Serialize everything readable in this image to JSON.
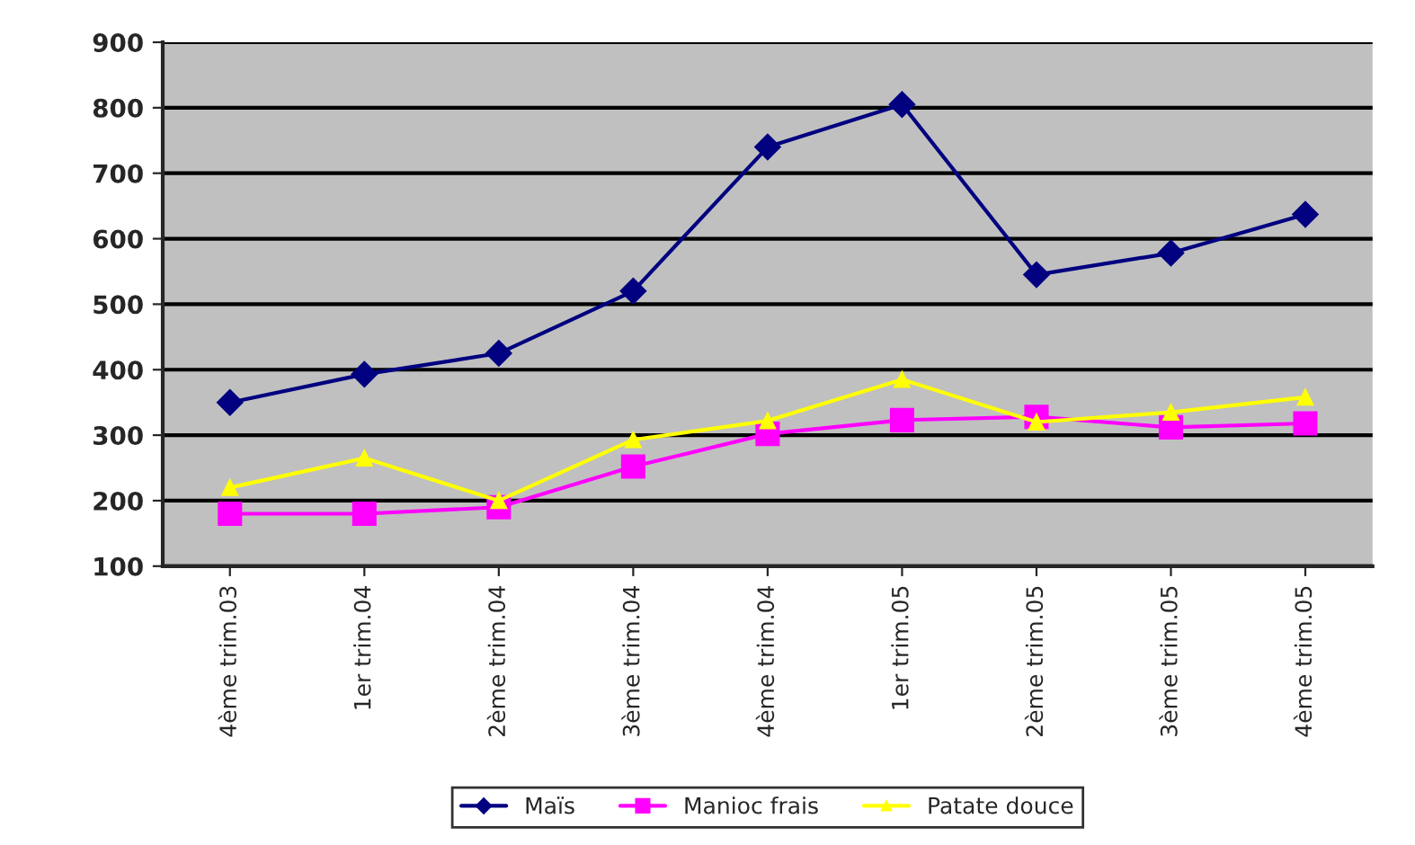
{
  "chart_data": {
    "type": "line",
    "categories": [
      "4ème trim.03",
      "1er trim.04",
      "2ème trim.04",
      "3ème trim.04",
      "4ème trim.04",
      "1er trim.05",
      "2ème trim.05",
      "3ème trim.05",
      "4ème trim.05"
    ],
    "series": [
      {
        "name": "Maïs",
        "color": "#000080",
        "marker": "diamond",
        "values": [
          350,
          393,
          425,
          520,
          740,
          805,
          545,
          578,
          637
        ]
      },
      {
        "name": "Manioc frais",
        "color": "#ff00ff",
        "marker": "square",
        "values": [
          180,
          180,
          190,
          252,
          302,
          323,
          328,
          312,
          318
        ]
      },
      {
        "name": "Patate douce",
        "color": "#ffff00",
        "marker": "triangle",
        "values": [
          220,
          265,
          200,
          293,
          322,
          385,
          320,
          335,
          358
        ]
      }
    ],
    "ylim": [
      100,
      900
    ],
    "yticks": [
      100,
      200,
      300,
      400,
      500,
      600,
      700,
      800,
      900
    ],
    "grid": "y",
    "legend": "bottom"
  }
}
